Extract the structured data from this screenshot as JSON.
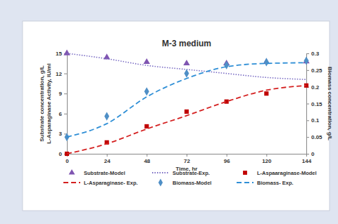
{
  "chart_data": {
    "type": "line",
    "title": "M-3 medium",
    "x_label": "Time, hr",
    "y_label": [
      "Substrate concentration, g/L",
      "L-Asparaginase Activity, IU/ml"
    ],
    "y2_label": "Biomass concentration, g/L",
    "x": [
      0,
      24,
      48,
      72,
      96,
      120,
      144
    ],
    "xlim": [
      0,
      144
    ],
    "xticks": [
      0,
      24,
      48,
      72,
      96,
      120,
      144
    ],
    "ylim": [
      0,
      15
    ],
    "yticks": [
      0,
      3,
      6,
      9,
      12,
      15
    ],
    "y2lim": [
      0,
      0.3
    ],
    "y2ticks": [
      0,
      0.05,
      0.1,
      0.15,
      0.2,
      0.25,
      0.3
    ],
    "grid": false,
    "legend": "bottom",
    "series": [
      {
        "name": "Substrate-Model",
        "type": "scatter",
        "marker": "triangle",
        "color": "#7f55b1",
        "values": [
          15,
          14.4,
          13.7,
          13.5,
          13.5,
          13.7,
          13.8
        ]
      },
      {
        "name": "Substrate-Exp.",
        "type": "line",
        "line_style": "dotted",
        "color": "#7a6cc4",
        "values": [
          15,
          14.2,
          13.2,
          12.6,
          12.0,
          11.4,
          11.1
        ]
      },
      {
        "name": "L-Aspaaraginase-Model",
        "type": "scatter",
        "marker": "square",
        "color": "#c00000",
        "values": [
          0,
          1.7,
          4.1,
          6.3,
          7.8,
          9.0,
          10.2
        ]
      },
      {
        "name": "L-Asparaginase- Exp.",
        "type": "line",
        "line_style": "dashed",
        "color": "#d42020",
        "values": [
          0,
          1.5,
          3.7,
          5.7,
          7.8,
          9.5,
          10.2
        ]
      },
      {
        "name": "Biomass-Model",
        "type": "scatter",
        "marker": "diamond",
        "color": "#4f8fc6",
        "axis": "y2",
        "values": [
          0.05,
          0.112,
          0.186,
          0.24,
          0.265,
          0.274,
          0.278
        ]
      },
      {
        "name": "Biomass- Exp.",
        "type": "line",
        "line_style": "dashed",
        "color": "#2f8fd6",
        "axis": "y2",
        "values": [
          0.05,
          0.09,
          0.17,
          0.225,
          0.26,
          0.27,
          0.272
        ]
      }
    ]
  }
}
